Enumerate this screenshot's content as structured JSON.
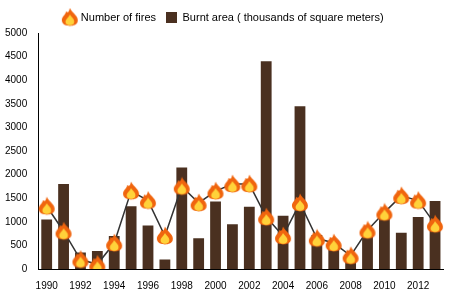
{
  "chart_data": {
    "type": "bar",
    "categories": [
      1990,
      null,
      1992,
      null,
      1994,
      null,
      1996,
      null,
      1998,
      null,
      2000,
      null,
      2002,
      null,
      2004,
      null,
      2006,
      null,
      2008,
      null,
      2010,
      null,
      2012,
      null
    ],
    "series": [
      {
        "name": "Burnt area ( thousands of square meters)",
        "type": "bar",
        "color": "#4a3020",
        "values": [
          1050,
          1800,
          350,
          380,
          700,
          1330,
          920,
          200,
          2150,
          650,
          1430,
          950,
          1320,
          4400,
          1130,
          3450,
          720,
          600,
          200,
          750,
          1080,
          770,
          1100,
          1440
        ]
      },
      {
        "name": "Number of fires",
        "type": "line",
        "color": "#333333",
        "marker": "fire",
        "line_style": "solid",
        "values": [
          1330,
          800,
          200,
          100,
          550,
          1650,
          1450,
          700,
          1750,
          1400,
          1650,
          1800,
          1800,
          1100,
          700,
          1400,
          650,
          550,
          280,
          820,
          1200,
          1550,
          1450,
          950
        ]
      }
    ],
    "ylim": [
      0,
      5000
    ],
    "yticks": [
      0,
      500,
      1000,
      1500,
      2000,
      2500,
      3000,
      3500,
      4000,
      4500,
      5000
    ],
    "grid": false,
    "legend": "top"
  }
}
